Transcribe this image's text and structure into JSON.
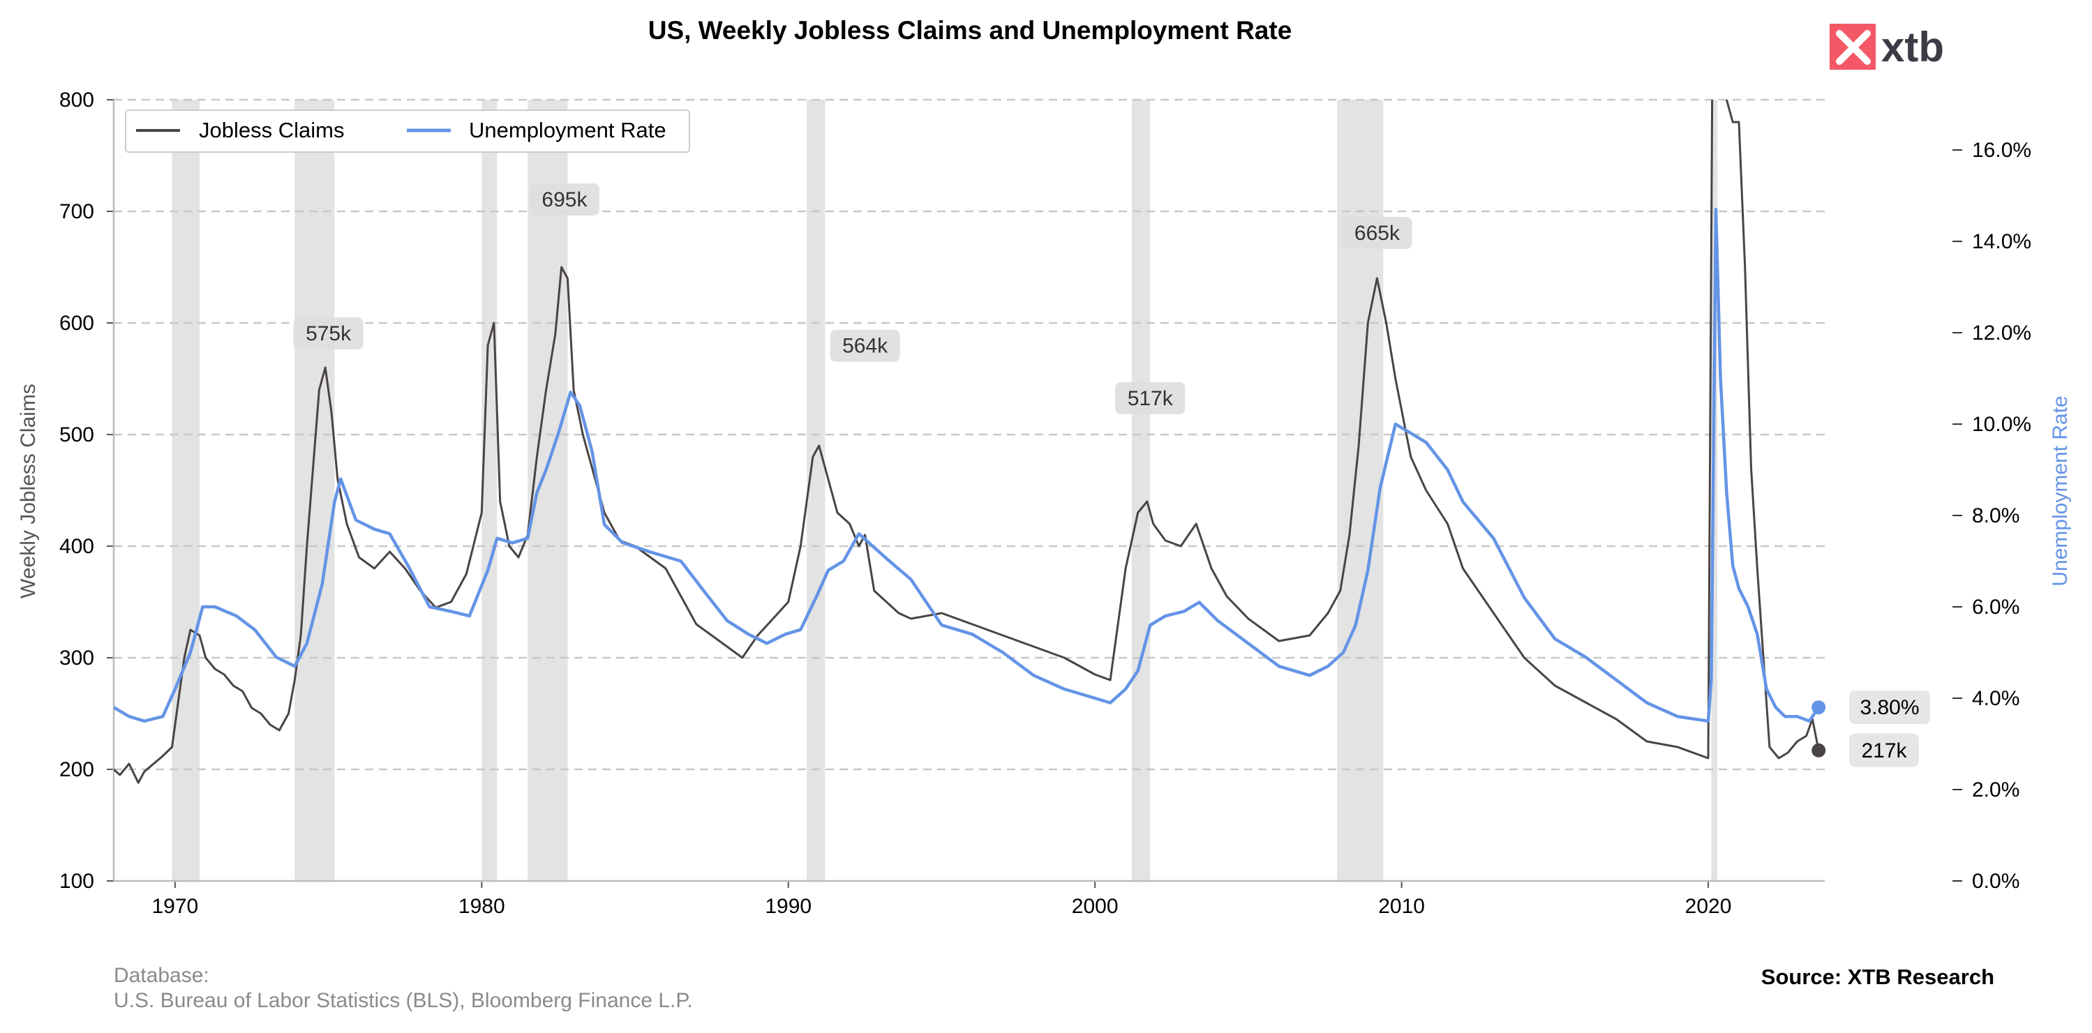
{
  "chart_data": {
    "type": "line",
    "title": "US, Weekly Jobless Claims and Unemployment Rate",
    "ylabel": "Weekly Jobless Claims",
    "y2label": "Unemployment Rate",
    "xlim": [
      1968.0,
      2023.8
    ],
    "ylim": [
      100,
      800
    ],
    "y2lim": [
      0,
      17.1
    ],
    "x_ticks": [
      1970,
      1980,
      1990,
      2000,
      2010,
      2020
    ],
    "x_tick_labels": [
      "1970",
      "1980",
      "1990",
      "2000",
      "2010",
      "2020"
    ],
    "y_ticks": [
      100,
      200,
      300,
      400,
      500,
      600,
      700,
      800
    ],
    "y_tick_labels": [
      "100",
      "200",
      "300",
      "400",
      "500",
      "600",
      "700",
      "800"
    ],
    "y2_ticks": [
      0,
      2,
      4,
      6,
      8,
      10,
      12,
      14,
      16
    ],
    "y2_tick_labels": [
      "0.0%",
      "2.0%",
      "4.0%",
      "6.0%",
      "8.0%",
      "10.0%",
      "12.0%",
      "14.0%",
      "16.0%"
    ],
    "grid": "horizontal dashed",
    "legend_position": "top-left",
    "recessions": [
      [
        1969.9,
        1970.8
      ],
      [
        1973.9,
        1975.2
      ],
      [
        1980.0,
        1980.5
      ],
      [
        1981.5,
        1982.8
      ],
      [
        1990.6,
        1991.2
      ],
      [
        2001.2,
        2001.8
      ],
      [
        2007.9,
        2009.4
      ],
      [
        2020.1,
        2020.3
      ]
    ],
    "series": [
      {
        "name": "Jobless Claims",
        "axis": "left",
        "color": "#4a4444",
        "x": [
          1968.0,
          1968.2,
          1968.5,
          1968.8,
          1969.0,
          1969.3,
          1969.6,
          1969.9,
          1970.1,
          1970.3,
          1970.5,
          1970.8,
          1971.0,
          1971.3,
          1971.6,
          1971.9,
          1972.2,
          1972.5,
          1972.8,
          1973.1,
          1973.4,
          1973.7,
          1973.9,
          1974.1,
          1974.3,
          1974.5,
          1974.7,
          1974.9,
          1975.1,
          1975.3,
          1975.6,
          1976.0,
          1976.5,
          1977.0,
          1977.5,
          1978.0,
          1978.5,
          1979.0,
          1979.5,
          1980.0,
          1980.2,
          1980.4,
          1980.6,
          1980.9,
          1981.2,
          1981.5,
          1981.8,
          1982.1,
          1982.4,
          1982.6,
          1982.8,
          1983.0,
          1983.3,
          1983.7,
          1984.0,
          1984.5,
          1985.0,
          1986.0,
          1987.0,
          1988.0,
          1988.5,
          1989.0,
          1989.5,
          1990.0,
          1990.4,
          1990.8,
          1991.0,
          1991.3,
          1991.6,
          1992.0,
          1992.3,
          1992.5,
          1992.8,
          1993.2,
          1993.6,
          1994.0,
          1995.0,
          1996.0,
          1997.0,
          1998.0,
          1999.0,
          2000.0,
          2000.5,
          2001.0,
          2001.4,
          2001.7,
          2001.9,
          2002.3,
          2002.8,
          2003.3,
          2003.8,
          2004.3,
          2005.0,
          2006.0,
          2007.0,
          2007.6,
          2008.0,
          2008.3,
          2008.6,
          2008.9,
          2009.2,
          2009.5,
          2009.8,
          2010.3,
          2010.8,
          2011.5,
          2012.0,
          2013.0,
          2014.0,
          2015.0,
          2016.0,
          2017.0,
          2018.0,
          2019.0,
          2020.0,
          2020.15,
          2020.2,
          2020.4,
          2020.6,
          2020.8,
          2021.0,
          2021.2,
          2021.4,
          2021.6,
          2021.8,
          2022.0,
          2022.3,
          2022.6,
          2022.9,
          2023.2,
          2023.4,
          2023.6
        ],
        "y": [
          200,
          195,
          205,
          188,
          198,
          205,
          212,
          220,
          260,
          300,
          325,
          320,
          300,
          290,
          285,
          275,
          270,
          255,
          250,
          240,
          235,
          250,
          280,
          320,
          400,
          470,
          540,
          560,
          520,
          460,
          420,
          390,
          380,
          395,
          380,
          360,
          345,
          350,
          375,
          430,
          580,
          600,
          440,
          400,
          390,
          410,
          480,
          540,
          590,
          650,
          640,
          540,
          500,
          460,
          430,
          405,
          400,
          380,
          330,
          310,
          300,
          320,
          335,
          350,
          400,
          480,
          490,
          460,
          430,
          420,
          400,
          410,
          360,
          350,
          340,
          335,
          340,
          330,
          320,
          310,
          300,
          285,
          280,
          380,
          430,
          440,
          420,
          405,
          400,
          420,
          380,
          355,
          335,
          315,
          320,
          340,
          360,
          410,
          490,
          600,
          640,
          600,
          550,
          480,
          450,
          420,
          380,
          340,
          300,
          275,
          260,
          245,
          225,
          220,
          210,
          900,
          950,
          850,
          800,
          780,
          780,
          650,
          470,
          380,
          300,
          220,
          210,
          215,
          225,
          230,
          245,
          217
        ]
      },
      {
        "name": "Unemployment Rate",
        "axis": "right",
        "color": "#6494e6",
        "x": [
          1968.0,
          1968.5,
          1969.0,
          1969.6,
          1970.0,
          1970.5,
          1970.9,
          1971.3,
          1972.0,
          1972.6,
          1973.3,
          1973.9,
          1974.3,
          1974.8,
          1975.2,
          1975.4,
          1975.9,
          1976.5,
          1977.0,
          1977.6,
          1978.3,
          1979.0,
          1979.6,
          1980.2,
          1980.5,
          1981.0,
          1981.5,
          1981.8,
          1982.1,
          1982.5,
          1982.9,
          1983.2,
          1983.6,
          1984.0,
          1984.6,
          1985.5,
          1986.5,
          1987.3,
          1988.0,
          1988.7,
          1989.3,
          1989.9,
          1990.4,
          1990.9,
          1991.3,
          1991.8,
          1992.3,
          1992.8,
          1993.3,
          1994.0,
          1995.0,
          1996.0,
          1997.0,
          1998.0,
          1999.0,
          2000.0,
          2000.5,
          2001.0,
          2001.4,
          2001.8,
          2002.3,
          2002.9,
          2003.4,
          2004.0,
          2005.0,
          2006.0,
          2007.0,
          2007.6,
          2008.1,
          2008.5,
          2008.9,
          2009.3,
          2009.8,
          2010.3,
          2010.8,
          2011.5,
          2012.0,
          2013.0,
          2014.0,
          2015.0,
          2016.0,
          2017.0,
          2018.0,
          2019.0,
          2020.0,
          2020.1,
          2020.25,
          2020.4,
          2020.6,
          2020.8,
          2021.0,
          2021.3,
          2021.6,
          2021.9,
          2022.2,
          2022.5,
          2022.9,
          2023.3,
          2023.6
        ],
        "y": [
          3.8,
          3.6,
          3.5,
          3.6,
          4.2,
          5.0,
          6.0,
          6.0,
          5.8,
          5.5,
          4.9,
          4.7,
          5.2,
          6.5,
          8.3,
          8.8,
          7.9,
          7.7,
          7.6,
          6.9,
          6.0,
          5.9,
          5.8,
          6.8,
          7.5,
          7.4,
          7.5,
          8.5,
          9.0,
          9.8,
          10.7,
          10.4,
          9.4,
          7.8,
          7.4,
          7.2,
          7.0,
          6.3,
          5.7,
          5.4,
          5.2,
          5.4,
          5.5,
          6.2,
          6.8,
          7.0,
          7.6,
          7.3,
          7.0,
          6.6,
          5.6,
          5.4,
          5.0,
          4.5,
          4.2,
          4.0,
          3.9,
          4.2,
          4.6,
          5.6,
          5.8,
          5.9,
          6.1,
          5.7,
          5.2,
          4.7,
          4.5,
          4.7,
          5.0,
          5.6,
          6.8,
          8.6,
          10.0,
          9.8,
          9.6,
          9.0,
          8.3,
          7.5,
          6.2,
          5.3,
          4.9,
          4.4,
          3.9,
          3.6,
          3.5,
          4.4,
          14.7,
          11.0,
          8.5,
          6.9,
          6.4,
          6.0,
          5.4,
          4.2,
          3.8,
          3.6,
          3.6,
          3.5,
          3.8
        ]
      }
    ],
    "peak_labels": [
      {
        "x": 1975.0,
        "y": 575,
        "label": "575k"
      },
      {
        "x": 1982.7,
        "y": 695,
        "label": "695k"
      },
      {
        "x": 1992.5,
        "y": 564,
        "label": "564k"
      },
      {
        "x": 2001.8,
        "y": 517,
        "label": "517k"
      },
      {
        "x": 2009.2,
        "y": 665,
        "label": "665k"
      }
    ],
    "last_values": {
      "unemployment": {
        "value": 3.8,
        "label": "3.80%"
      },
      "claims": {
        "value": 217,
        "label": "217k"
      }
    }
  },
  "footer": {
    "database_label": "Database:",
    "database_sources": "U.S. Bureau of Labor Statistics (BLS), Bloomberg Finance L.P.",
    "source": "Source: XTB Research"
  },
  "logo": {
    "text": "xtb",
    "accent_color": "#f45866",
    "text_color": "#3c3c46"
  }
}
